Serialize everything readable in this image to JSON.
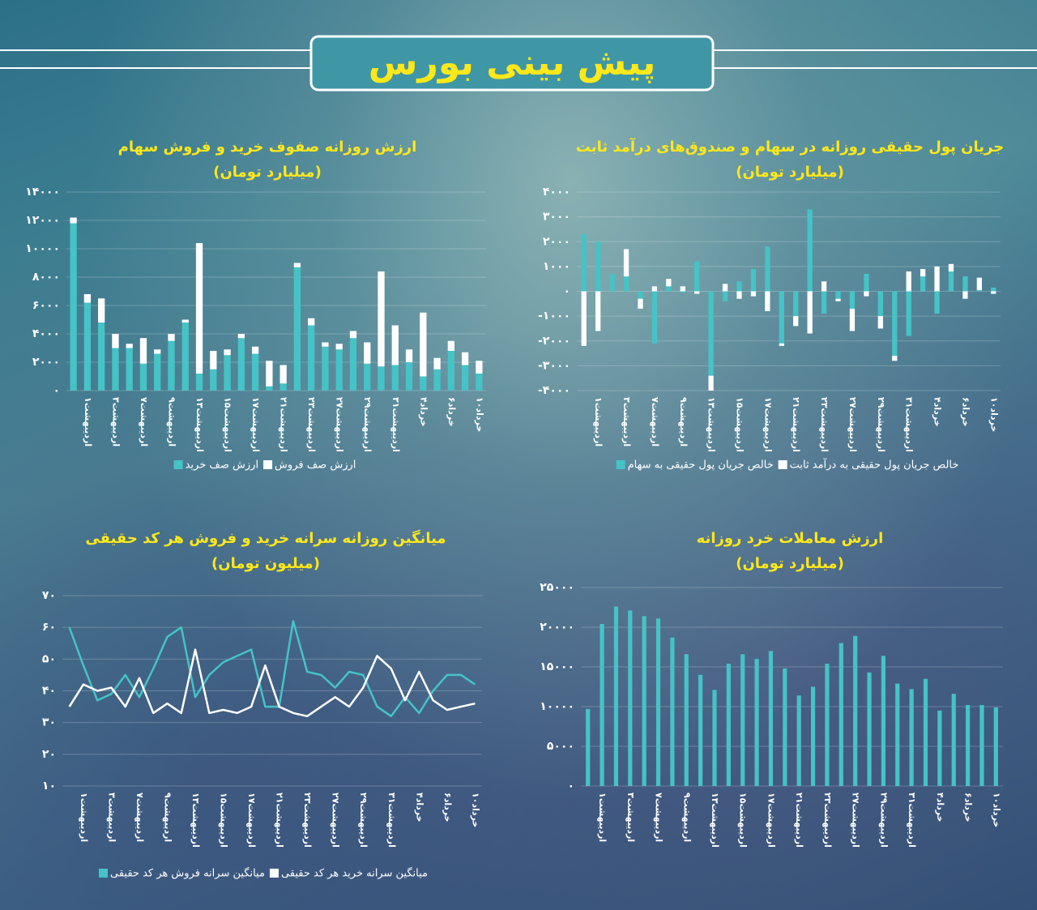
{
  "header": {
    "title": "پیش بینی بورس"
  },
  "chart_data": [
    {
      "type": "bar",
      "title": "ارزش روزانه صفوف خرید و فروش سهام",
      "subtitle": "(میلیارد تومان)",
      "categories": [
        null,
        "اردیبهشت۱",
        null,
        "اردیبهشت۳",
        null,
        "اردیبهشت۷",
        null,
        "اردیبهشت۹",
        null,
        "اردیبهشت۱۳",
        null,
        "اردیبهشت۱۵",
        null,
        "اردیبهشت۱۷",
        null,
        "اردیبهشت۲۱",
        null,
        "اردیبهشت۲۳",
        null,
        "اردیبهشت۲۷",
        null,
        "اردیبهشت۲۹",
        null,
        "اردیبهشت۳۱",
        null,
        "خرداد۴",
        null,
        "خرداد۶",
        null,
        "خرداد۱۰"
      ],
      "series": [
        {
          "name": "ارزش صف خرید",
          "color": "#45c3c6",
          "values": [
            11800,
            6200,
            4800,
            3000,
            3000,
            1900,
            2600,
            3500,
            4800,
            1200,
            1500,
            2500,
            3700,
            2600,
            300,
            500,
            8700,
            4600,
            3100,
            2900,
            3700,
            1900,
            1700,
            1800,
            2000,
            1000,
            1500,
            2800,
            1800,
            1200
          ]
        },
        {
          "name": "ارزش صف فروش",
          "color": "#ffffff",
          "values": [
            400,
            600,
            1700,
            1000,
            300,
            1800,
            300,
            500,
            200,
            9200,
            1300,
            400,
            300,
            500,
            1800,
            1300,
            300,
            500,
            300,
            400,
            500,
            1500,
            6700,
            2800,
            900,
            4500,
            800,
            700,
            900,
            900
          ]
        }
      ],
      "ylim": [
        0,
        14000
      ],
      "yticks": [
        {
          "value": 0,
          "label": "۰"
        },
        {
          "value": 2000,
          "label": "۲۰۰۰"
        },
        {
          "value": 4000,
          "label": "۴۰۰۰"
        },
        {
          "value": 6000,
          "label": "۶۰۰۰"
        },
        {
          "value": 8000,
          "label": "۸۰۰۰"
        },
        {
          "value": 10000,
          "label": "۱۰۰۰۰"
        },
        {
          "value": 12000,
          "label": "۱۲۰۰۰"
        },
        {
          "value": 14000,
          "label": "۱۴۰۰۰"
        }
      ],
      "grid": true,
      "legend": "bottom"
    },
    {
      "type": "bar",
      "title": "جریان پول حقیقی روزانه در سهام و صندوق‌های درآمد ثابت",
      "subtitle": "(میلیارد تومان)",
      "categories": [
        null,
        "اردیبهشت۱",
        null,
        "اردیبهشت۳",
        null,
        "اردیبهشت۷",
        null,
        "اردیبهشت۹",
        null,
        "اردیبهشت۱۳",
        null,
        "اردیبهشت۱۵",
        null,
        "اردیبهشت۱۷",
        null,
        "اردیبهشت۲۱",
        null,
        "اردیبهشت۲۳",
        null,
        "اردیبهشت۲۷",
        null,
        "اردیبهشت۲۹",
        null,
        "اردیبهشت۳۱",
        null,
        "خرداد۴",
        null,
        "خرداد۶",
        null,
        "خرداد۱۰"
      ],
      "series": [
        {
          "name": "خالص جریان پول حقیقی به سهام",
          "color": "#45c3c6",
          "values": [
            2300,
            2000,
            700,
            600,
            -300,
            -2100,
            200,
            -50,
            1200,
            -3400,
            -400,
            400,
            900,
            1800,
            -2100,
            -1000,
            3300,
            -900,
            -300,
            -700,
            700,
            -1000,
            -2600,
            -1800,
            600,
            -900,
            800,
            600,
            50,
            150
          ]
        },
        {
          "name": "خالص جریان پول حقیقی به درآمد ثابت",
          "color": "#ffffff",
          "values": [
            -2200,
            -1600,
            0,
            1100,
            -400,
            200,
            300,
            200,
            -100,
            -600,
            300,
            -300,
            -200,
            -800,
            -100,
            -400,
            -1700,
            400,
            -100,
            -900,
            -200,
            -500,
            -200,
            800,
            300,
            1000,
            300,
            -300,
            500,
            -100
          ]
        }
      ],
      "ylim": [
        -4000,
        4000
      ],
      "yticks": [
        {
          "value": -4000,
          "label": "-۴۰۰۰"
        },
        {
          "value": -3000,
          "label": "-۳۰۰۰"
        },
        {
          "value": -2000,
          "label": "-۲۰۰۰"
        },
        {
          "value": -1000,
          "label": "-۱۰۰۰"
        },
        {
          "value": 0,
          "label": "۰"
        },
        {
          "value": 1000,
          "label": "۱۰۰۰"
        },
        {
          "value": 2000,
          "label": "۲۰۰۰"
        },
        {
          "value": 3000,
          "label": "۳۰۰۰"
        },
        {
          "value": 4000,
          "label": "۴۰۰۰"
        }
      ],
      "grid": true,
      "legend": "bottom"
    },
    {
      "type": "line",
      "title": "میانگین روزانه سرانه خرید و فروش هر کد حقیقی",
      "subtitle": "(میلیون تومان)",
      "categories": [
        null,
        "اردیبهشت۱",
        null,
        "اردیبهشت۳",
        null,
        "اردیبهشت۷",
        null,
        "اردیبهشت۹",
        null,
        "اردیبهشت۱۳",
        null,
        "اردیبهشت۱۵",
        null,
        "اردیبهشت۱۷",
        null,
        "اردیبهشت۲۱",
        null,
        "اردیبهشت۲۳",
        null,
        "اردیبهشت۲۷",
        null,
        "اردیبهشت۲۹",
        null,
        "اردیبهشت۳۱",
        null,
        "خرداد۴",
        null,
        "خرداد۶",
        null,
        "خرداد۱۰"
      ],
      "series": [
        {
          "name": "میانگین سرانه فروش هر کد حقیقی",
          "color": "#45c3c6",
          "values": [
            60,
            48,
            37,
            39,
            45,
            38,
            47,
            57,
            60,
            38,
            45,
            49,
            51,
            53,
            35,
            35,
            62,
            46,
            45,
            41,
            46,
            45,
            35,
            32,
            38,
            33,
            40,
            45,
            45,
            42
          ]
        },
        {
          "name": "میانگین سرانه خرید هر کد حقیقی",
          "color": "#ffffff",
          "values": [
            35,
            42,
            40,
            41,
            35,
            44,
            33,
            36,
            33,
            53,
            33,
            34,
            33,
            35,
            48,
            35,
            33,
            32,
            35,
            38,
            35,
            41,
            51,
            47,
            37,
            46,
            37,
            34,
            35,
            36
          ]
        }
      ],
      "ylim": [
        10,
        70
      ],
      "yticks": [
        {
          "value": 10,
          "label": "۱۰"
        },
        {
          "value": 20,
          "label": "۲۰"
        },
        {
          "value": 30,
          "label": "۳۰"
        },
        {
          "value": 40,
          "label": "۴۰"
        },
        {
          "value": 50,
          "label": "۵۰"
        },
        {
          "value": 60,
          "label": "۶۰"
        },
        {
          "value": 70,
          "label": "۷۰"
        }
      ],
      "grid": true,
      "legend": "bottom"
    },
    {
      "type": "bar",
      "title": "ارزش معاملات خرد روزانه",
      "subtitle": "(میلیارد تومان)",
      "categories": [
        null,
        "اردیبهشت۱",
        null,
        "اردیبهشت۳",
        null,
        "اردیبهشت۷",
        null,
        "اردیبهشت۹",
        null,
        "اردیبهشت۱۳",
        null,
        "اردیبهشت۱۵",
        null,
        "اردیبهشت۱۷",
        null,
        "اردیبهشت۲۱",
        null,
        "اردیبهشت۲۳",
        null,
        "اردیبهشت۲۷",
        null,
        "اردیبهشت۲۹",
        null,
        "اردیبهشت۳۱",
        null,
        "خرداد۴",
        null,
        "خرداد۶",
        null,
        "خرداد۱۰"
      ],
      "values": [
        9700,
        20400,
        22600,
        22100,
        21400,
        21100,
        18700,
        16600,
        14000,
        12100,
        15400,
        16600,
        16000,
        17000,
        14800,
        11400,
        12500,
        15400,
        18000,
        18900,
        14300,
        16400,
        12900,
        12200,
        13500,
        9500,
        11600,
        10200,
        10200,
        9900
      ],
      "color": "#45c3c6",
      "ylim": [
        0,
        25000
      ],
      "yticks": [
        {
          "value": 0,
          "label": "۰"
        },
        {
          "value": 5000,
          "label": "۵۰۰۰"
        },
        {
          "value": 10000,
          "label": "۱۰۰۰۰"
        },
        {
          "value": 15000,
          "label": "۱۵۰۰۰"
        },
        {
          "value": 20000,
          "label": "۲۰۰۰۰"
        },
        {
          "value": 25000,
          "label": "۲۵۰۰۰"
        }
      ],
      "grid": true
    }
  ]
}
